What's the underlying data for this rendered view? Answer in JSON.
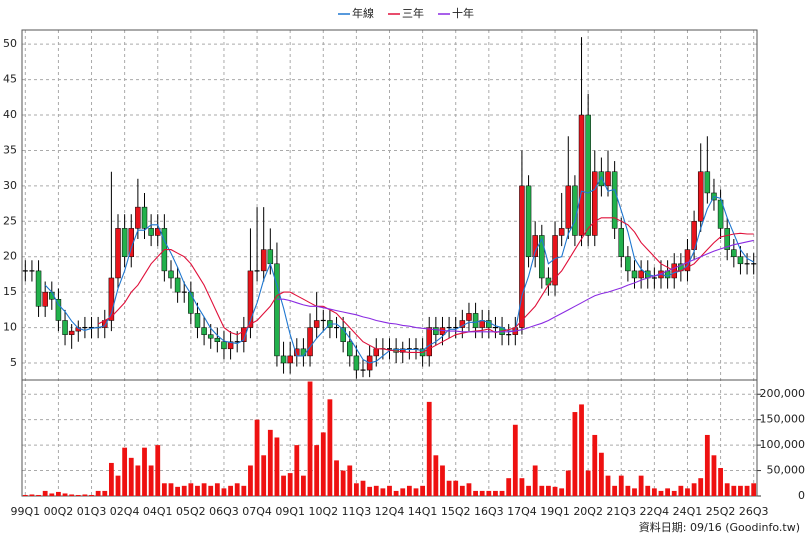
{
  "chart_data": {
    "type": "candlestick",
    "categories": [
      "99Q1",
      null,
      null,
      null,
      null,
      "00Q2",
      null,
      null,
      null,
      null,
      "01Q3",
      null,
      null,
      null,
      null,
      "02Q4",
      null,
      null,
      null,
      null,
      "04Q1",
      null,
      null,
      null,
      null,
      "05Q2",
      null,
      null,
      null,
      null,
      "06Q3",
      null,
      null,
      null,
      null,
      "07Q4",
      null,
      null,
      null,
      null,
      "09Q1",
      null,
      null,
      null,
      null,
      "10Q2",
      null,
      null,
      null,
      null,
      "11Q3",
      null,
      null,
      null,
      null,
      "12Q4",
      null,
      null,
      null,
      null,
      "14Q1",
      null,
      null,
      null,
      null,
      "15Q2",
      null,
      null,
      null,
      null,
      "16Q3",
      null,
      null,
      null,
      null,
      "17Q4",
      null,
      null,
      null,
      null,
      "19Q1",
      null,
      null,
      null,
      null,
      "20Q2",
      null,
      null,
      null,
      null,
      "21Q3",
      null,
      null,
      null,
      null,
      "22Q4",
      null,
      null,
      null,
      null,
      "24Q1",
      null,
      null,
      null,
      null,
      "25Q2",
      null,
      null,
      null,
      null,
      "26Q3"
    ],
    "open": [
      18,
      18,
      18,
      13,
      15,
      14,
      11,
      9,
      9.5,
      10,
      10,
      10,
      10,
      11,
      17,
      24,
      20,
      24,
      27,
      24,
      23,
      24,
      18,
      17,
      15,
      15,
      12,
      10,
      9,
      8.5,
      8,
      7,
      8,
      8,
      10,
      18,
      18,
      21,
      19,
      6,
      5,
      6,
      7,
      6,
      10,
      11,
      11,
      10,
      10,
      8,
      6,
      4,
      4,
      6,
      7,
      7,
      7,
      6.5,
      7,
      7,
      7,
      6,
      10,
      9,
      10,
      10,
      10,
      11,
      12,
      10,
      11,
      10,
      10,
      9,
      9,
      10,
      30,
      20,
      23,
      17,
      16,
      23,
      24,
      30,
      23,
      40,
      23,
      32,
      30,
      32,
      24,
      20,
      18,
      17,
      18,
      17,
      17,
      18,
      17,
      19,
      18,
      21,
      25,
      32,
      29,
      28,
      24,
      21,
      20,
      19,
      19
    ],
    "high": [
      19.5,
      19.5,
      19.5,
      16.5,
      16.5,
      15.5,
      12.5,
      10.5,
      11,
      11.5,
      11.5,
      11.5,
      12.5,
      32,
      26,
      26,
      26,
      31,
      29,
      26,
      26,
      26,
      19.5,
      18.5,
      16.5,
      16.5,
      13.5,
      11.5,
      10.5,
      10,
      9.5,
      9.5,
      9.5,
      11.5,
      24,
      27,
      27,
      24,
      22,
      8,
      8,
      8.5,
      8.5,
      12,
      15,
      12.5,
      12.5,
      11.5,
      11.5,
      9.5,
      7.5,
      5.5,
      7.5,
      8.5,
      8.5,
      8.5,
      8.5,
      8,
      8.5,
      8.5,
      8.5,
      11.5,
      11.5,
      11.5,
      11.5,
      11.5,
      12.5,
      13.5,
      13.5,
      12.5,
      12.5,
      11.5,
      11.5,
      10.5,
      11.5,
      35,
      31.5,
      25,
      24.5,
      18.5,
      25,
      29,
      37,
      31.5,
      51,
      43,
      35,
      34,
      35,
      33.5,
      25.5,
      21.5,
      19.5,
      19.5,
      19.5,
      18.5,
      19.5,
      19.5,
      20.5,
      20.5,
      22.5,
      26.5,
      36,
      37,
      31,
      29.5,
      25.5,
      22.5,
      21.5,
      20.5,
      20.5
    ],
    "low": [
      16.5,
      16.5,
      11.5,
      11.5,
      12.5,
      9.5,
      7.5,
      7,
      8,
      8.5,
      8.5,
      8.5,
      8.5,
      9.5,
      15.5,
      18.5,
      18.5,
      22.5,
      22.5,
      21.5,
      21.5,
      16.5,
      15.5,
      13.5,
      13.5,
      10.5,
      8.5,
      7.5,
      7,
      6.5,
      5.5,
      5.5,
      6.5,
      6.5,
      8.5,
      16.5,
      16.5,
      17.5,
      4.5,
      3.5,
      3.5,
      4.5,
      4.5,
      4.5,
      8.5,
      9.5,
      8.5,
      8.5,
      6.5,
      4.5,
      2.8,
      3,
      3,
      4.5,
      5.5,
      5.5,
      5,
      5,
      5.5,
      5.5,
      4.5,
      4.5,
      7.5,
      7.5,
      8.5,
      8.5,
      8.5,
      9.5,
      8.5,
      8.5,
      8.5,
      8.5,
      7.5,
      7.5,
      7.5,
      9,
      18.5,
      18.5,
      15.5,
      14.5,
      14.5,
      21.5,
      22.5,
      21.5,
      21.5,
      21.5,
      21.5,
      28.5,
      28.5,
      22.5,
      18.5,
      16.5,
      15.5,
      15.5,
      15.5,
      15.5,
      15.5,
      15.5,
      15.5,
      16.5,
      16.5,
      19.5,
      23.5,
      27.5,
      26.5,
      22.5,
      19.5,
      18.5,
      17.5,
      17.5,
      17.5
    ],
    "close": [
      18,
      18,
      13,
      15,
      14,
      11,
      9,
      9.5,
      10,
      10,
      10,
      10,
      11,
      17,
      24,
      20,
      24,
      27,
      24,
      23,
      24,
      18,
      17,
      15,
      15,
      12,
      10,
      9,
      8.5,
      8,
      7,
      8,
      8,
      10,
      18,
      18,
      21,
      19,
      6,
      5,
      6,
      7,
      6,
      10,
      11,
      11,
      10,
      10,
      8,
      6,
      4,
      4,
      6,
      7,
      7,
      7,
      6.5,
      7,
      7,
      7,
      6,
      10,
      9,
      10,
      10,
      10,
      11,
      12,
      10,
      11,
      10,
      10,
      9,
      9,
      10,
      30,
      20,
      23,
      17,
      16,
      23,
      24,
      30,
      23,
      40,
      23,
      32,
      30,
      32,
      24,
      20,
      18,
      17,
      18,
      17,
      17,
      18,
      17,
      19,
      18,
      21,
      25,
      32,
      29,
      28,
      24,
      21,
      20,
      19,
      19,
      19
    ],
    "up_color": "#e8141c",
    "down_color": "#22b14c",
    "ylim": [
      2.6,
      52
    ],
    "yticks": [
      5,
      10,
      15,
      20,
      25,
      30,
      35,
      40,
      45,
      50
    ],
    "series": [
      {
        "name": "年線",
        "color": "#1f77d0",
        "values": [
          null,
          null,
          null,
          16,
          15,
          13.25,
          12.25,
          10.9,
          9.9,
          9.6,
          9.9,
          10,
          10.25,
          12,
          15.5,
          18,
          21.25,
          23.75,
          23.75,
          24.5,
          24.5,
          22.25,
          20.5,
          18.5,
          16.25,
          14.75,
          13,
          11.5,
          9.9,
          8.9,
          8.1,
          7.9,
          7.75,
          8.25,
          11,
          13.5,
          16.75,
          19,
          16,
          12.75,
          9,
          6,
          6,
          7.25,
          8.5,
          9.5,
          10.5,
          10.5,
          9.75,
          8.5,
          7,
          5.5,
          5,
          5.25,
          6,
          6.75,
          6.9,
          6.9,
          6.9,
          6.9,
          6.75,
          7.5,
          8,
          8.75,
          9.75,
          9.75,
          10.25,
          10.75,
          10.75,
          11,
          10.75,
          10.25,
          10,
          9.5,
          9.5,
          14.5,
          17.25,
          20.75,
          22.5,
          19,
          19.75,
          20,
          23.25,
          25,
          29.25,
          29,
          29.5,
          31.25,
          29.25,
          29.5,
          26.5,
          23.5,
          19.75,
          18.25,
          17.5,
          17.25,
          17.5,
          17.25,
          17.75,
          18,
          18.75,
          20.75,
          24,
          26.75,
          28.5,
          28.25,
          25.5,
          23.25,
          21,
          19.75,
          19.25
        ]
      },
      {
        "name": "三年",
        "color": "#e0103a",
        "values": [
          null,
          null,
          null,
          null,
          null,
          null,
          null,
          null,
          null,
          null,
          null,
          10.5,
          11,
          11.5,
          12.5,
          13.5,
          15,
          16,
          17.5,
          19,
          20,
          21,
          21,
          20.5,
          20,
          19,
          17.5,
          16,
          14,
          12,
          10,
          9.3,
          9,
          9.5,
          10.5,
          11,
          12,
          13,
          14.5,
          15,
          15,
          14.5,
          14,
          13.5,
          13,
          13,
          12.5,
          12,
          11,
          10,
          9,
          8,
          7.5,
          7,
          7,
          6.8,
          6.7,
          6.6,
          6.5,
          6.5,
          6.5,
          7,
          7.5,
          8,
          8.5,
          9,
          9.2,
          9.4,
          9.5,
          9.6,
          9.8,
          9.3,
          9.5,
          9.7,
          10,
          11,
          12,
          13,
          14.5,
          16,
          17,
          18,
          19.5,
          21,
          22.5,
          24,
          25,
          25.5,
          25.5,
          25.5,
          25,
          24.5,
          23.5,
          22,
          21,
          20,
          19,
          18.5,
          18,
          18,
          18.5,
          19,
          20,
          21,
          22,
          22.8,
          23,
          23.2,
          23.3,
          23.2,
          23.2
        ]
      },
      {
        "name": "十年",
        "color": "#8a2be2",
        "values": [
          null,
          null,
          null,
          null,
          null,
          null,
          null,
          null,
          null,
          null,
          null,
          null,
          null,
          null,
          null,
          null,
          null,
          null,
          null,
          null,
          null,
          null,
          null,
          null,
          null,
          null,
          null,
          null,
          null,
          null,
          null,
          null,
          null,
          null,
          null,
          null,
          null,
          null,
          14,
          14,
          13.8,
          13.5,
          13.2,
          13,
          13,
          12.8,
          12.6,
          12.4,
          12.2,
          12,
          11.8,
          11.5,
          11.3,
          11,
          10.8,
          10.6,
          10.5,
          10.3,
          10.2,
          10,
          9.9,
          9.8,
          9.7,
          9.6,
          9.5,
          9.5,
          9.4,
          9.4,
          9.4,
          9.4,
          9.4,
          9.4,
          9.4,
          9.4,
          9.5,
          9.7,
          10,
          10.3,
          10.6,
          11,
          11.5,
          12,
          12.5,
          13,
          13.5,
          14,
          14.5,
          14.8,
          15,
          15.3,
          15.6,
          16,
          16.3,
          16.7,
          17,
          17.3,
          17.6,
          18,
          18.4,
          18.8,
          19.2,
          19.6,
          20,
          20.4,
          20.8,
          21.1,
          21.4,
          21.7,
          21.9,
          22.1,
          22.3
        ]
      }
    ],
    "volume": {
      "color": "#ee1111",
      "values": [
        2000,
        3000,
        2000,
        10000,
        5000,
        8000,
        5000,
        3000,
        2000,
        3000,
        2000,
        10000,
        10000,
        65000,
        40000,
        95000,
        75000,
        60000,
        95000,
        60000,
        100000,
        25000,
        25000,
        18000,
        20000,
        25000,
        20000,
        25000,
        20000,
        25000,
        15000,
        20000,
        25000,
        20000,
        60000,
        150000,
        80000,
        130000,
        115000,
        40000,
        45000,
        100000,
        40000,
        225000,
        100000,
        125000,
        190000,
        70000,
        50000,
        60000,
        25000,
        30000,
        18000,
        20000,
        15000,
        20000,
        10000,
        15000,
        20000,
        15000,
        20000,
        185000,
        80000,
        60000,
        30000,
        30000,
        20000,
        25000,
        10000,
        10000,
        10000,
        10000,
        10000,
        35000,
        140000,
        35000,
        20000,
        60000,
        20000,
        20000,
        18000,
        15000,
        50000,
        165000,
        180000,
        50000,
        120000,
        85000,
        40000,
        20000,
        40000,
        20000,
        15000,
        40000,
        20000,
        15000,
        10000,
        15000,
        10000,
        20000,
        15000,
        25000,
        35000,
        120000,
        80000,
        55000,
        25000,
        20000,
        20000,
        20000,
        25000
      ],
      "ylim": [
        0,
        228000
      ],
      "yticks": [
        0,
        {
          "value": 50000,
          "label": "50,000"
        },
        {
          "value": 100000,
          "label": "100,000"
        },
        {
          "value": 150000,
          "label": "150,000"
        },
        {
          "value": 200000,
          "label": "200,000"
        }
      ]
    },
    "grid": true,
    "legend": "top",
    "source": "資料日期: 09/16 (Goodinfo.tw)"
  }
}
